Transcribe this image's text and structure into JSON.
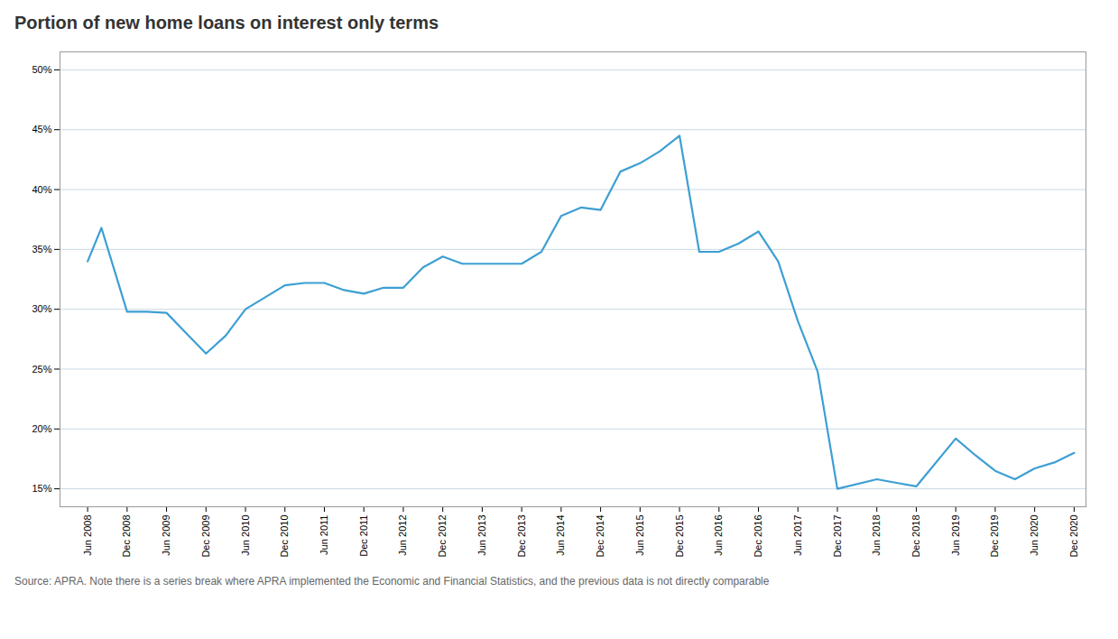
{
  "chart_data": {
    "type": "line",
    "title": "Portion of new home loans on interest only terms",
    "caption": "Source: APRA. Note there is a series break where APRA implemented the Economic and Financial Statistics, and the previous data is not directly comparable",
    "color": "#3d9fd3",
    "grid": true,
    "x": [
      0,
      0.35,
      1,
      1.5,
      2,
      2.5,
      3,
      3.5,
      4,
      4.5,
      5,
      5.5,
      6,
      6.5,
      7,
      7.5,
      8,
      8.5,
      9,
      9.5,
      10,
      10.5,
      11,
      11.5,
      12,
      12.5,
      13,
      13.5,
      14,
      14.5,
      15,
      15.5,
      16,
      16.5,
      17,
      17.5,
      18,
      18.5,
      19,
      20,
      20.5,
      21,
      22,
      22.5,
      23,
      23.5,
      24,
      24.5,
      25
    ],
    "values": [
      0.34,
      0.368,
      0.298,
      0.298,
      0.297,
      0.28,
      0.263,
      0.278,
      0.3,
      0.31,
      0.32,
      0.322,
      0.322,
      0.316,
      0.313,
      0.318,
      0.318,
      0.335,
      0.344,
      0.338,
      0.338,
      0.338,
      0.338,
      0.348,
      0.378,
      0.385,
      0.383,
      0.415,
      0.422,
      0.432,
      0.445,
      0.348,
      0.348,
      0.355,
      0.365,
      0.34,
      0.29,
      0.248,
      0.15,
      0.158,
      0.155,
      0.152,
      0.192,
      0.178,
      0.165,
      0.158,
      0.167,
      0.172,
      0.18
    ],
    "xlim": [
      -0.7,
      25.3
    ],
    "xticks": [
      {
        "value": 0,
        "label": "Jun 2008"
      },
      {
        "value": 1,
        "label": "Dec 2008"
      },
      {
        "value": 2,
        "label": "Jun 2009"
      },
      {
        "value": 3,
        "label": "Dec 2009"
      },
      {
        "value": 4,
        "label": "Jun 2010"
      },
      {
        "value": 5,
        "label": "Dec 2010"
      },
      {
        "value": 6,
        "label": "Jun 2011"
      },
      {
        "value": 7,
        "label": "Dec 2011"
      },
      {
        "value": 8,
        "label": "Jun 2012"
      },
      {
        "value": 9,
        "label": "Dec 2012"
      },
      {
        "value": 10,
        "label": "Jun 2013"
      },
      {
        "value": 11,
        "label": "Dec 2013"
      },
      {
        "value": 12,
        "label": "Jun 2014"
      },
      {
        "value": 13,
        "label": "Dec 2014"
      },
      {
        "value": 14,
        "label": "Jun 2015"
      },
      {
        "value": 15,
        "label": "Dec 2015"
      },
      {
        "value": 16,
        "label": "Jun 2016"
      },
      {
        "value": 17,
        "label": "Dec 2016"
      },
      {
        "value": 18,
        "label": "Jun 2017"
      },
      {
        "value": 19,
        "label": "Dec 2017"
      },
      {
        "value": 20,
        "label": "Jun 2018"
      },
      {
        "value": 21,
        "label": "Dec 2018"
      },
      {
        "value": 22,
        "label": "Jun 2019"
      },
      {
        "value": 23,
        "label": "Dec 2019"
      },
      {
        "value": 24,
        "label": "Jun 2020"
      },
      {
        "value": 25,
        "label": "Dec 2020"
      }
    ],
    "ylim": [
      0.135,
      0.515
    ],
    "yticks": [
      {
        "value": 0.15,
        "label": "15%"
      },
      {
        "value": 0.2,
        "label": "20%"
      },
      {
        "value": 0.25,
        "label": "25%"
      },
      {
        "value": 0.3,
        "label": "30%"
      },
      {
        "value": 0.35,
        "label": "35%"
      },
      {
        "value": 0.4,
        "label": "40%"
      },
      {
        "value": 0.45,
        "label": "45%"
      },
      {
        "value": 0.5,
        "label": "50%"
      }
    ]
  }
}
